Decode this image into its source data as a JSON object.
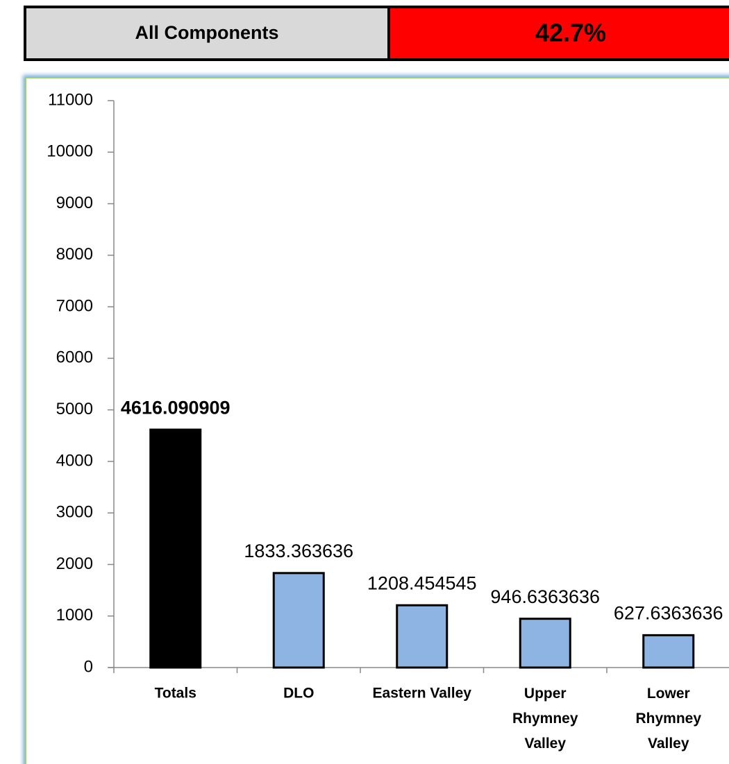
{
  "header": {
    "label": "All Components",
    "value": "42.7%"
  },
  "chart_data": {
    "type": "bar",
    "categories": [
      "Totals",
      "DLO",
      "Eastern Valley",
      "Upper Rhymney Valley",
      "Lower Rhymney Valley"
    ],
    "values": [
      4616.090909,
      1833.363636,
      1208.454545,
      946.6363636,
      627.6363636
    ],
    "colors": [
      "#000000",
      "#8eb4e3",
      "#8eb4e3",
      "#8eb4e3",
      "#8eb4e3"
    ],
    "ylim": [
      0,
      11000
    ],
    "yticks": [
      0,
      1000,
      2000,
      3000,
      4000,
      5000,
      6000,
      7000,
      8000,
      9000,
      10000,
      11000
    ]
  }
}
